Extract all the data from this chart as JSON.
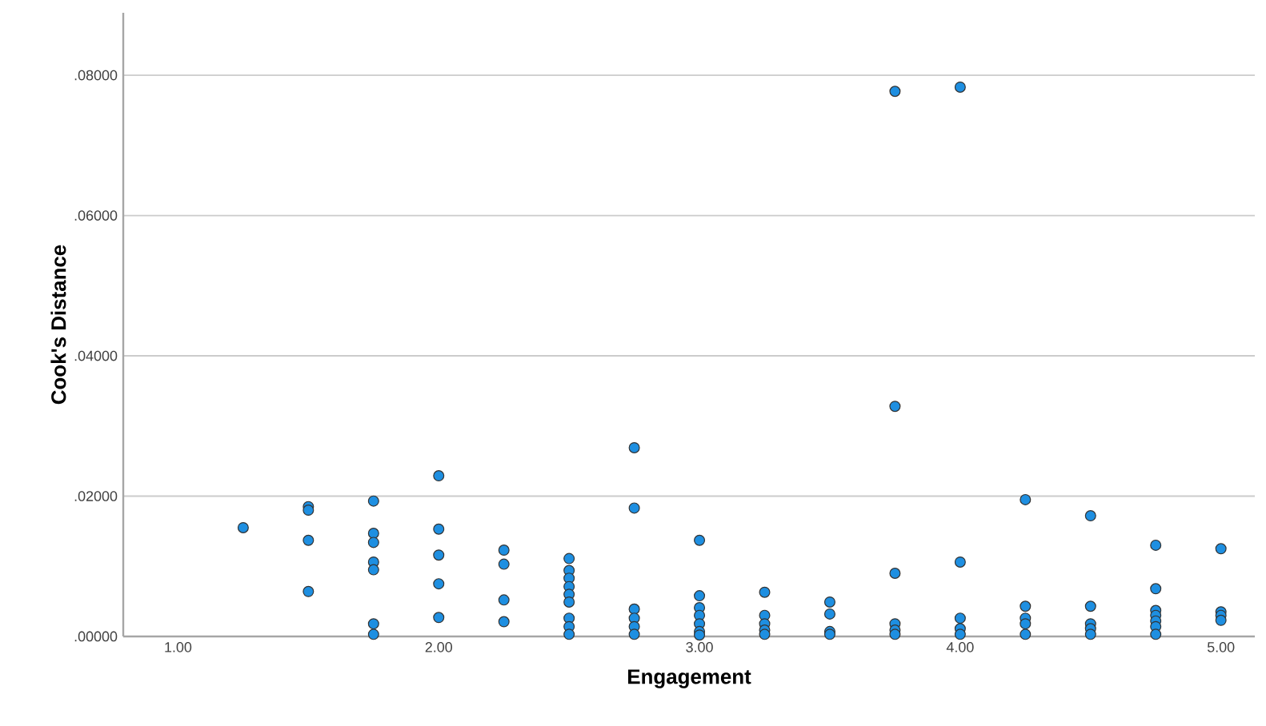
{
  "chart_data": {
    "type": "scatter",
    "xlabel": "Engagement",
    "ylabel": "Cook's Distance",
    "x": [
      1.25,
      1.5,
      1.5,
      1.5,
      1.5,
      1.75,
      1.75,
      1.75,
      1.75,
      1.75,
      1.75,
      1.75,
      2.0,
      2.0,
      2.0,
      2.0,
      2.0,
      2.25,
      2.25,
      2.25,
      2.25,
      2.5,
      2.5,
      2.5,
      2.5,
      2.5,
      2.5,
      2.5,
      2.5,
      2.5,
      2.75,
      2.75,
      2.75,
      2.75,
      2.75,
      2.75,
      3.0,
      3.0,
      3.0,
      3.0,
      3.0,
      3.0,
      3.0,
      3.25,
      3.25,
      3.25,
      3.25,
      3.25,
      3.5,
      3.5,
      3.5,
      3.5,
      3.75,
      3.75,
      3.75,
      3.75,
      3.75,
      3.75,
      4.0,
      4.0,
      4.0,
      4.0,
      4.0,
      4.25,
      4.25,
      4.25,
      4.25,
      4.25,
      4.5,
      4.5,
      4.5,
      4.5,
      4.5,
      4.75,
      4.75,
      4.75,
      4.75,
      4.75,
      4.75,
      4.75,
      5.0,
      5.0,
      5.0,
      5.0
    ],
    "values": [
      0.0155,
      0.0185,
      0.018,
      0.0137,
      0.0064,
      0.0193,
      0.0147,
      0.0134,
      0.0106,
      0.0095,
      0.0018,
      0.0003,
      0.0229,
      0.0153,
      0.0116,
      0.0075,
      0.0027,
      0.0123,
      0.0103,
      0.0052,
      0.0021,
      0.0111,
      0.0094,
      0.0083,
      0.0071,
      0.006,
      0.0049,
      0.0026,
      0.0014,
      0.0003,
      0.0269,
      0.0183,
      0.0039,
      0.0026,
      0.0014,
      0.0003,
      0.0137,
      0.0058,
      0.0041,
      0.003,
      0.0018,
      0.0007,
      0.0002,
      0.0063,
      0.003,
      0.0018,
      0.0009,
      0.0003,
      0.0049,
      0.0032,
      0.0007,
      0.0003,
      0.0777,
      0.0328,
      0.009,
      0.0018,
      0.0009,
      0.0003,
      0.0783,
      0.0106,
      0.0026,
      0.0011,
      0.0003,
      0.0195,
      0.0043,
      0.0026,
      0.0018,
      0.0003,
      0.0172,
      0.0043,
      0.0018,
      0.0011,
      0.0003,
      0.013,
      0.0068,
      0.0037,
      0.003,
      0.0022,
      0.0014,
      0.0003,
      0.0125,
      0.0035,
      0.003,
      0.0023
    ],
    "color": "#1e8fe1",
    "grid": "y",
    "xlim": [
      0.79,
      5.13
    ],
    "ylim": [
      0,
      0.0889
    ],
    "xticks": [
      {
        "value": 1,
        "label": "1.00"
      },
      {
        "value": 2,
        "label": "2.00"
      },
      {
        "value": 3,
        "label": "3.00"
      },
      {
        "value": 4,
        "label": "4.00"
      },
      {
        "value": 5,
        "label": "5.00"
      }
    ],
    "yticks": [
      {
        "value": 0,
        "label": ".00000"
      },
      {
        "value": 0.02,
        "label": ".02000"
      },
      {
        "value": 0.04,
        "label": ".04000"
      },
      {
        "value": 0.06,
        "label": ".06000"
      },
      {
        "value": 0.08,
        "label": ".08000"
      }
    ]
  }
}
